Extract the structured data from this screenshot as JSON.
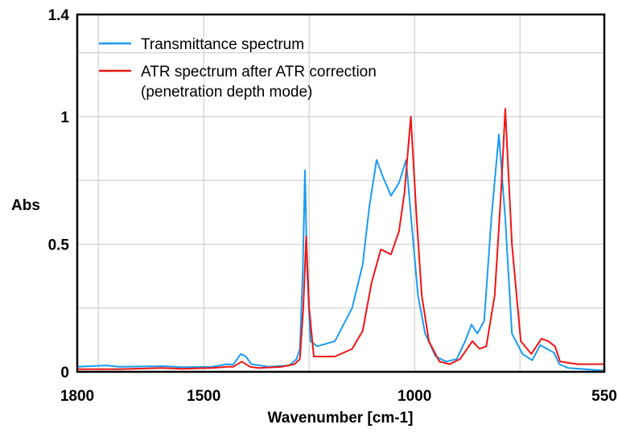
{
  "chart_data": {
    "type": "line",
    "title": "",
    "xlabel": "Wavenumber [cm-1]",
    "ylabel": "Abs",
    "xlim": [
      1800,
      550
    ],
    "ylim": [
      0,
      1.4
    ],
    "x_reversed": true,
    "x_ticks": [
      1800,
      1500,
      1000,
      550
    ],
    "y_ticks": [
      0,
      0.5,
      1,
      1.4
    ],
    "x_gridlines": [
      1750,
      1500,
      1250,
      1000,
      750
    ],
    "y_gridlines": [
      0.25,
      0.5,
      0.75,
      1.0,
      1.25
    ],
    "grid": true,
    "legend_position": "top-left",
    "series": [
      {
        "name": "Transmittance spectrum",
        "color": "#1a9cf0",
        "points": [
          [
            1800,
            0.02
          ],
          [
            1730,
            0.025
          ],
          [
            1700,
            0.02
          ],
          [
            1594,
            0.022
          ],
          [
            1550,
            0.018
          ],
          [
            1480,
            0.02
          ],
          [
            1445,
            0.03
          ],
          [
            1430,
            0.028
          ],
          [
            1412,
            0.07
          ],
          [
            1400,
            0.06
          ],
          [
            1387,
            0.03
          ],
          [
            1346,
            0.02
          ],
          [
            1297,
            0.025
          ],
          [
            1280,
            0.05
          ],
          [
            1272,
            0.09
          ],
          [
            1265,
            0.4
          ],
          [
            1260,
            0.79
          ],
          [
            1255,
            0.4
          ],
          [
            1247,
            0.12
          ],
          [
            1231,
            0.1
          ],
          [
            1189,
            0.12
          ],
          [
            1148,
            0.25
          ],
          [
            1123,
            0.42
          ],
          [
            1107,
            0.65
          ],
          [
            1090,
            0.83
          ],
          [
            1074,
            0.76
          ],
          [
            1056,
            0.69
          ],
          [
            1037,
            0.74
          ],
          [
            1020,
            0.83
          ],
          [
            1008,
            0.6
          ],
          [
            992,
            0.3
          ],
          [
            975,
            0.15
          ],
          [
            950,
            0.06
          ],
          [
            925,
            0.04
          ],
          [
            900,
            0.05
          ],
          [
            880,
            0.12
          ],
          [
            865,
            0.185
          ],
          [
            851,
            0.15
          ],
          [
            835,
            0.2
          ],
          [
            818,
            0.6
          ],
          [
            800,
            0.93
          ],
          [
            785,
            0.6
          ],
          [
            769,
            0.15
          ],
          [
            744,
            0.07
          ],
          [
            721,
            0.045
          ],
          [
            702,
            0.105
          ],
          [
            686,
            0.09
          ],
          [
            669,
            0.075
          ],
          [
            657,
            0.03
          ],
          [
            636,
            0.015
          ],
          [
            595,
            0.01
          ],
          [
            554,
            0.005
          ],
          [
            550,
            0.005
          ]
        ]
      },
      {
        "name": "ATR spectrum after ATR correction\n(penetration depth mode)",
        "legend_lines": [
          "ATR spectrum after ATR correction",
          "(penetration depth mode)"
        ],
        "color": "#f01414",
        "points": [
          [
            1800,
            0.01
          ],
          [
            1700,
            0.01
          ],
          [
            1600,
            0.015
          ],
          [
            1550,
            0.012
          ],
          [
            1480,
            0.015
          ],
          [
            1445,
            0.02
          ],
          [
            1430,
            0.02
          ],
          [
            1410,
            0.04
          ],
          [
            1390,
            0.02
          ],
          [
            1370,
            0.015
          ],
          [
            1314,
            0.02
          ],
          [
            1285,
            0.03
          ],
          [
            1272,
            0.05
          ],
          [
            1264,
            0.25
          ],
          [
            1257,
            0.53
          ],
          [
            1250,
            0.25
          ],
          [
            1239,
            0.06
          ],
          [
            1189,
            0.06
          ],
          [
            1148,
            0.09
          ],
          [
            1123,
            0.16
          ],
          [
            1102,
            0.35
          ],
          [
            1080,
            0.48
          ],
          [
            1056,
            0.46
          ],
          [
            1037,
            0.55
          ],
          [
            1024,
            0.7
          ],
          [
            1009,
            1.0
          ],
          [
            995,
            0.6
          ],
          [
            983,
            0.3
          ],
          [
            966,
            0.12
          ],
          [
            941,
            0.04
          ],
          [
            917,
            0.03
          ],
          [
            892,
            0.05
          ],
          [
            863,
            0.12
          ],
          [
            846,
            0.09
          ],
          [
            830,
            0.1
          ],
          [
            810,
            0.3
          ],
          [
            795,
            0.7
          ],
          [
            785,
            1.03
          ],
          [
            769,
            0.5
          ],
          [
            748,
            0.12
          ],
          [
            723,
            0.07
          ],
          [
            699,
            0.13
          ],
          [
            683,
            0.12
          ],
          [
            667,
            0.1
          ],
          [
            655,
            0.04
          ],
          [
            614,
            0.03
          ],
          [
            554,
            0.03
          ],
          [
            550,
            0.03
          ]
        ]
      }
    ]
  }
}
